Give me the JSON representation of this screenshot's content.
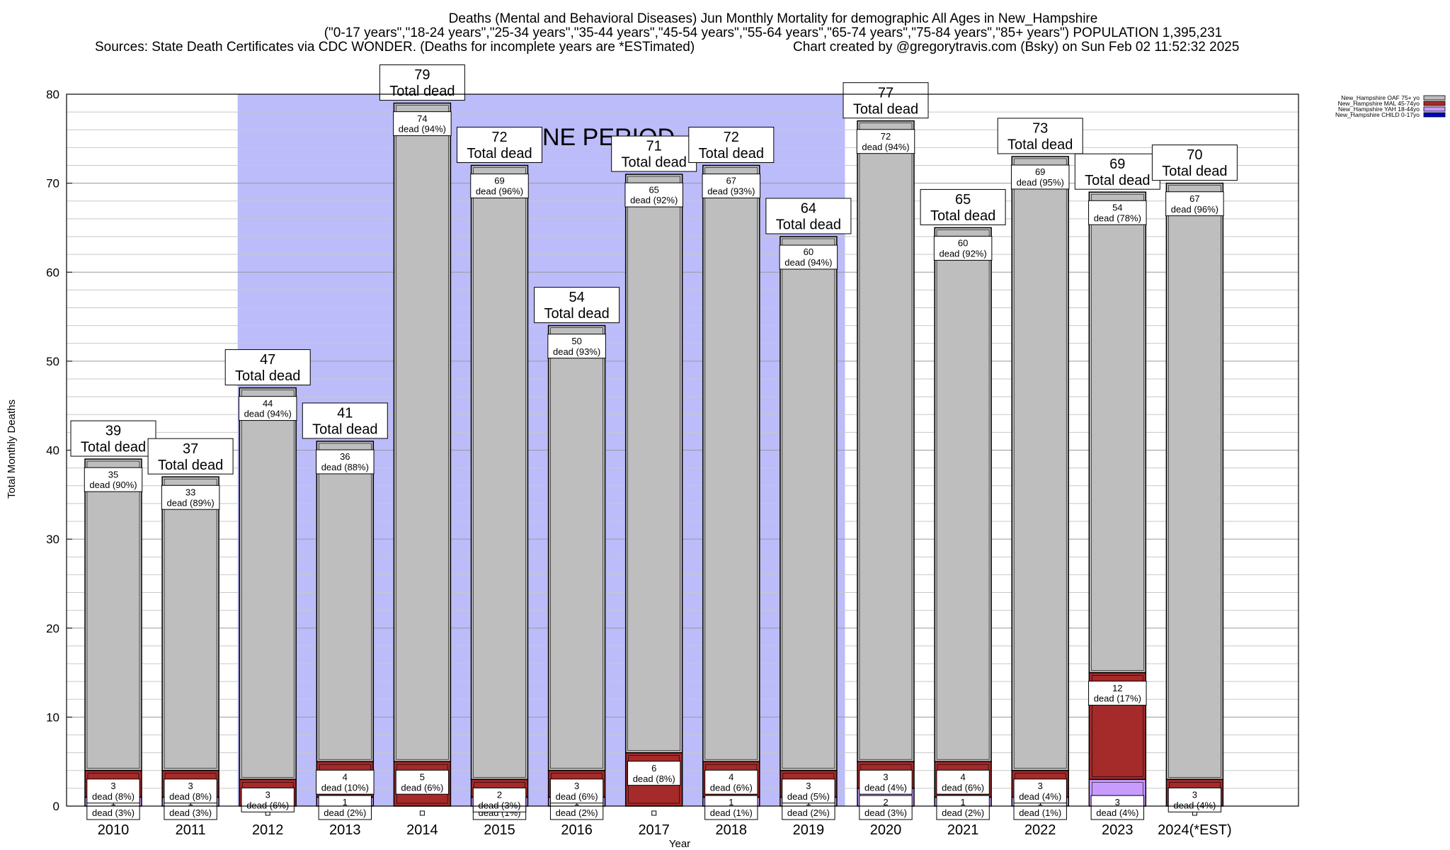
{
  "header": {
    "line1": "Deaths (Mental and Behavioral Diseases) Jun Monthly Mortality for demographic All Ages in New_Hampshire",
    "line2": "(\"0-17 years\",\"18-24 years\",\"25-34 years\",\"35-44 years\",\"45-54 years\",\"55-64 years\",\"65-74 years\",\"75-84 years\",\"85+ years\") POPULATION 1,395,231",
    "line3_left": "Sources: State Death Certificates via CDC WONDER. (Deaths for incomplete years are *ESTimated)",
    "line3_right": "Chart created by @gregorytravis.com (Bsky) on Sun Feb 02 11:52:32 2025"
  },
  "labels": {
    "total_dead": "Total dead",
    "dead_word": "dead",
    "baseline": "BASELINE PERIOD"
  },
  "colors": {
    "baseline_band": "#bcbcfa",
    "oaf": "#bebebe",
    "mal": "#a52a2a",
    "yah": "#c89bff",
    "child": "#0000cd",
    "grid": "#c8c8c8"
  },
  "chart_data": {
    "type": "bar",
    "stacked": true,
    "xlabel": "Year",
    "ylabel": "Total Monthly Deaths",
    "ylim": [
      0,
      80
    ],
    "yticks": [
      0,
      10,
      20,
      30,
      40,
      50,
      60,
      70,
      80
    ],
    "grid": true,
    "legend_position": "top-right",
    "baseline_period": [
      "2012",
      "2019"
    ],
    "categories": [
      "2010",
      "2011",
      "2012",
      "2013",
      "2014",
      "2015",
      "2016",
      "2017",
      "2018",
      "2019",
      "2020",
      "2021",
      "2022",
      "2023",
      "2024(*EST)"
    ],
    "totals": [
      39,
      37,
      47,
      41,
      79,
      72,
      54,
      71,
      72,
      64,
      77,
      65,
      73,
      69,
      70
    ],
    "series": [
      {
        "name": "New_Hampshire CHILD 0-17yo",
        "key": "child",
        "values": [
          0,
          0,
          0,
          0,
          0,
          0,
          0,
          0,
          0,
          0,
          0,
          0,
          0,
          0,
          0
        ],
        "labels": [
          "",
          "",
          "",
          "",
          "",
          "",
          "",
          "",
          "",
          "",
          "",
          "",
          "",
          "",
          ""
        ]
      },
      {
        "name": "New_Hampshire YAH 18-44yo",
        "key": "yah",
        "values": [
          1,
          1,
          0,
          1,
          0,
          1,
          1,
          0,
          1,
          1,
          2,
          1,
          1,
          3,
          0
        ],
        "labels": [
          "(3%)",
          "(3%)",
          "",
          "(2%)",
          "",
          "(1%)",
          "(2%)",
          "",
          "(1%)",
          "(2%)",
          "(3%)",
          "(2%)",
          "(1%)",
          "(4%)",
          ""
        ]
      },
      {
        "name": "New_Hampshire MAL 45-74yo",
        "key": "mal",
        "values": [
          3,
          3,
          3,
          4,
          5,
          2,
          3,
          6,
          4,
          3,
          3,
          4,
          3,
          12,
          3
        ],
        "labels": [
          "(8%)",
          "(8%)",
          "(6%)",
          "(10%)",
          "(6%)",
          "(3%)",
          "(6%)",
          "(8%)",
          "(6%)",
          "(5%)",
          "(4%)",
          "(6%)",
          "(4%)",
          "(17%)",
          "(4%)"
        ]
      },
      {
        "name": "New_Hampshire OAF 75+ yo",
        "key": "oaf",
        "values": [
          35,
          33,
          44,
          36,
          74,
          69,
          50,
          65,
          67,
          60,
          72,
          60,
          69,
          54,
          67
        ],
        "labels": [
          "(90%)",
          "(89%)",
          "(94%)",
          "(88%)",
          "(94%)",
          "(96%)",
          "(93%)",
          "(92%)",
          "(93%)",
          "(94%)",
          "(94%)",
          "(92%)",
          "(95%)",
          "(78%)",
          "(96%)"
        ]
      }
    ]
  }
}
